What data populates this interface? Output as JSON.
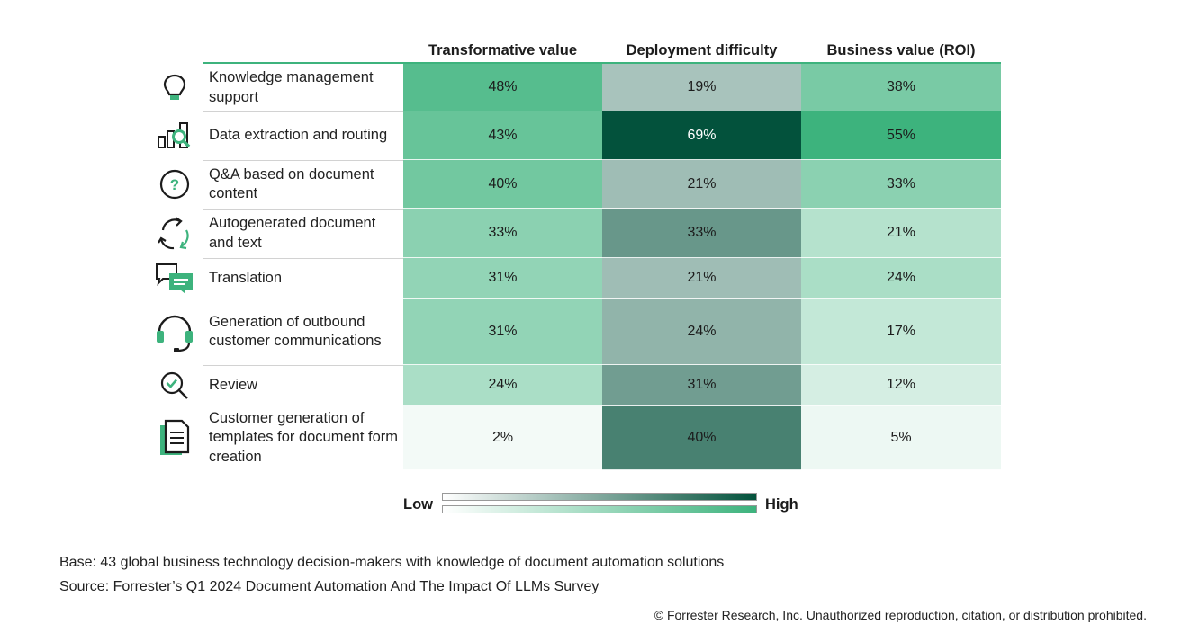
{
  "chart_data": {
    "type": "heatmap",
    "columns": [
      "Transformative value",
      "Deployment difficulty",
      "Business value (ROI)"
    ],
    "rows": [
      {
        "label": "Knowledge management support",
        "icon": "lightbulb-icon",
        "values": [
          48,
          19,
          38
        ]
      },
      {
        "label": "Data extraction and routing",
        "icon": "data-search-icon",
        "values": [
          43,
          69,
          55
        ]
      },
      {
        "label": "Q&A based on document content",
        "icon": "question-circle-icon",
        "values": [
          40,
          21,
          33
        ]
      },
      {
        "label": "Autogenerated document and text",
        "icon": "refresh-cycle-icon",
        "values": [
          33,
          33,
          21
        ]
      },
      {
        "label": "Translation",
        "icon": "chat-bubbles-icon",
        "values": [
          31,
          21,
          24
        ]
      },
      {
        "label": "Generation of outbound customer communications",
        "icon": "headset-icon",
        "values": [
          31,
          24,
          17
        ]
      },
      {
        "label": "Review",
        "icon": "magnify-check-icon",
        "values": [
          24,
          31,
          12
        ]
      },
      {
        "label": "Customer generation of templates for document form creation",
        "icon": "document-icon",
        "values": [
          2,
          40,
          5
        ]
      }
    ],
    "value_suffix": "%",
    "legend": {
      "low": "Low",
      "high": "High"
    },
    "colors": {
      "transformative": "#3db37d",
      "difficulty": "#03523c",
      "accent": "#3db37d",
      "low": "#ffffff"
    },
    "scale_max": 55
  },
  "footer": {
    "base": "Base: 43 global business technology decision-makers with knowledge of document automation solutions",
    "source": "Source: Forrester’s Q1 2024 Document Automation And The Impact Of LLMs Survey",
    "copyright": "© Forrester Research, Inc. Unauthorized reproduction, citation, or distribution prohibited."
  }
}
